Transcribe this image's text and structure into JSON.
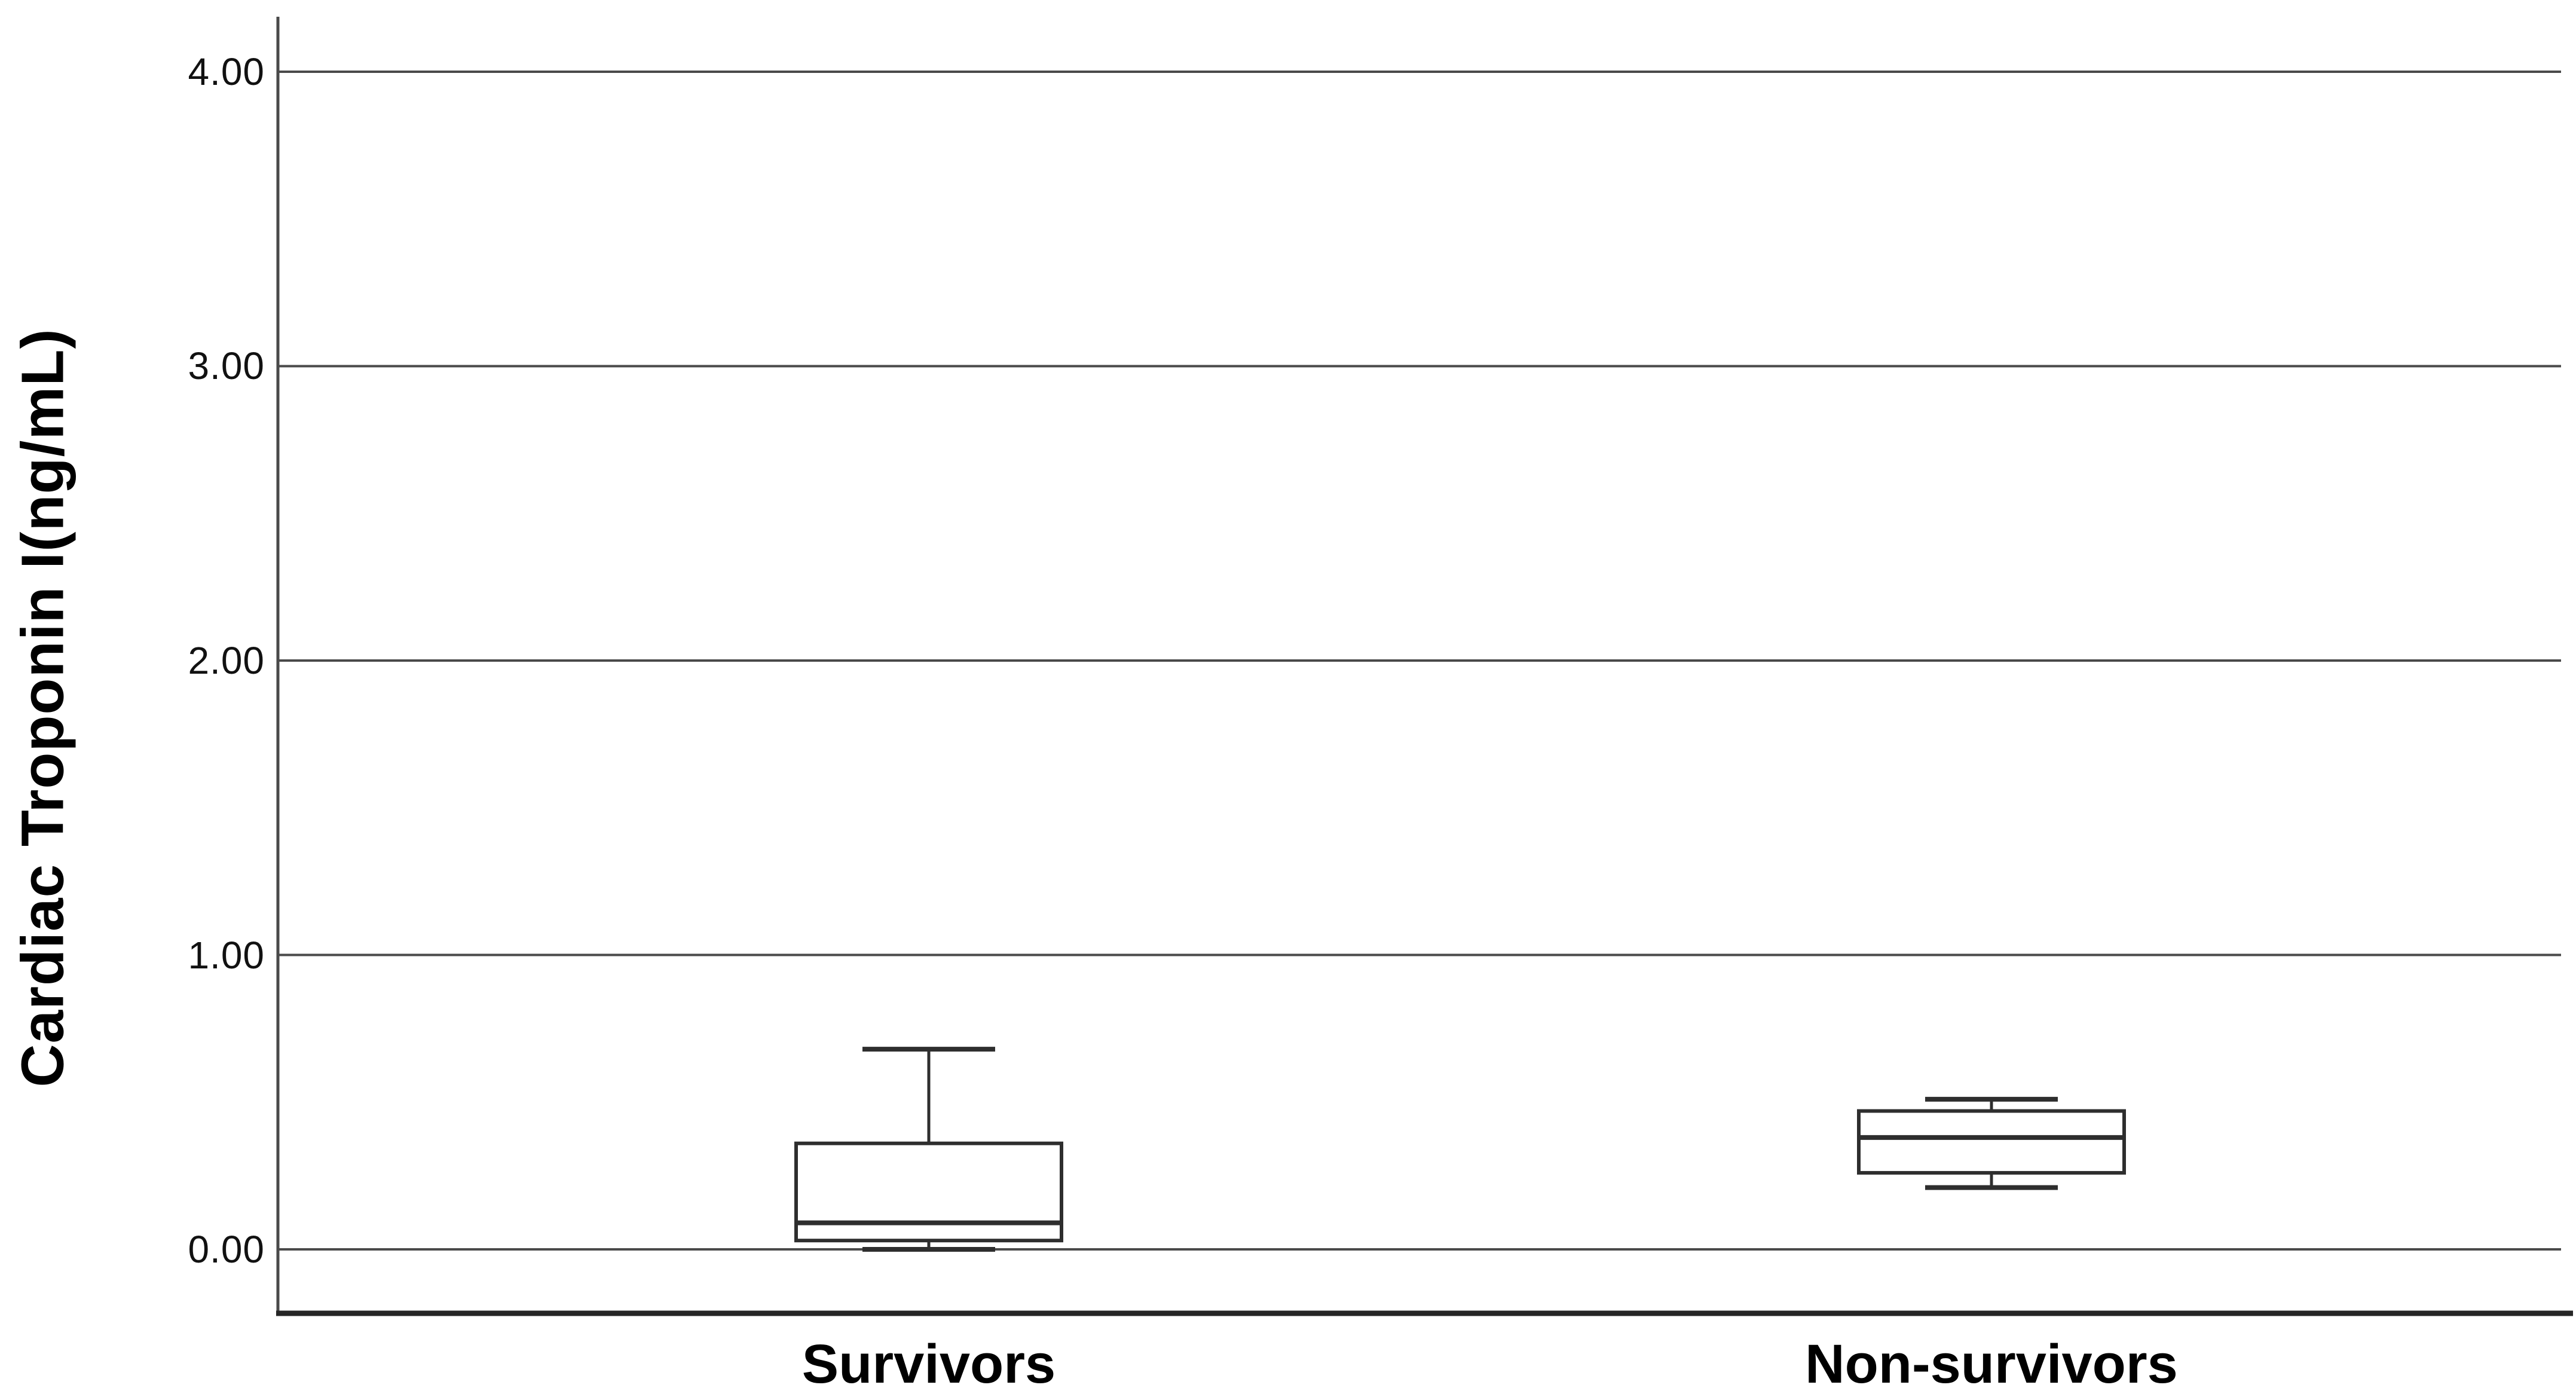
{
  "chart_data": {
    "type": "box",
    "title": "",
    "ylabel": "Cardiac Troponin I(ng/mL)",
    "xlabel": "",
    "categories": [
      "Survivors",
      "Non-survivors"
    ],
    "ytick_labels": [
      "4.00",
      "3.00",
      "2.00",
      "1.00",
      "0.00"
    ],
    "yticks": [
      4.0,
      3.0,
      2.0,
      1.0,
      0.0
    ],
    "ylim": [
      -0.22,
      4.19
    ],
    "grid": "horizontal-only",
    "legend": "none",
    "series": [
      {
        "name": "Survivors",
        "min": 0.0,
        "q1": 0.03,
        "median": 0.09,
        "q3": 0.36,
        "max": 0.68
      },
      {
        "name": "Non-survivors",
        "min": 0.21,
        "q1": 0.26,
        "median": 0.38,
        "q3": 0.47,
        "max": 0.51
      }
    ],
    "colors": {
      "background": "#ffffff",
      "gridline": "#4a4a4a",
      "axis": "#262626",
      "box_stroke": "#2e2e2e",
      "box_fill": "#ffffff",
      "text": "#111111"
    }
  }
}
